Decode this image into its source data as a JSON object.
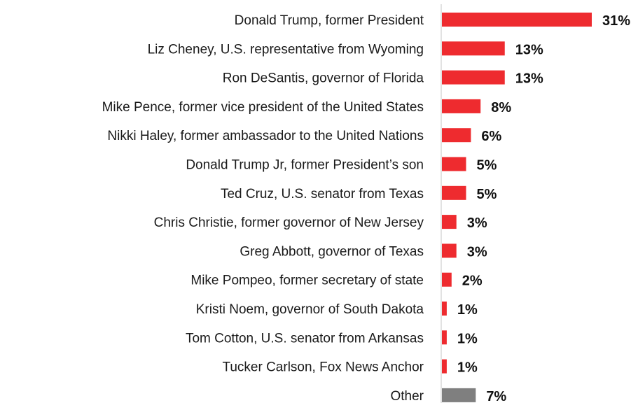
{
  "chart_data": {
    "type": "bar",
    "orientation": "horizontal",
    "title": "",
    "xlabel": "",
    "ylabel": "",
    "xlim": [
      0,
      31
    ],
    "grid": false,
    "legend": "none",
    "value_format": "percent",
    "categories": [
      "Donald Trump, former President",
      "Liz Cheney, U.S. representative from Wyoming",
      "Ron DeSantis, governor of Florida",
      "Mike Pence, former vice president of the United States",
      "Nikki Haley, former ambassador to the United Nations",
      "Donald Trump Jr, former President’s son",
      "Ted Cruz, U.S. senator from Texas",
      "Chris Christie, former governor of New Jersey",
      "Greg Abbott, governor of Texas",
      "Mike Pompeo, former secretary of state",
      "Kristi Noem, governor of South Dakota",
      "Tom Cotton, U.S. senator from Arkansas",
      "Tucker Carlson, Fox News Anchor",
      "Other"
    ],
    "values": [
      31,
      13,
      13,
      8,
      6,
      5,
      5,
      3,
      3,
      2,
      1,
      1,
      1,
      7
    ],
    "value_labels": [
      "31%",
      "13%",
      "13%",
      "8%",
      "6%",
      "5%",
      "5%",
      "3%",
      "3%",
      "2%",
      "1%",
      "1%",
      "1%",
      "7%"
    ],
    "colors": {
      "bar": "#ee2b2f",
      "other_bar": "#7f7f7f",
      "axis": "#d9d9d9"
    }
  }
}
